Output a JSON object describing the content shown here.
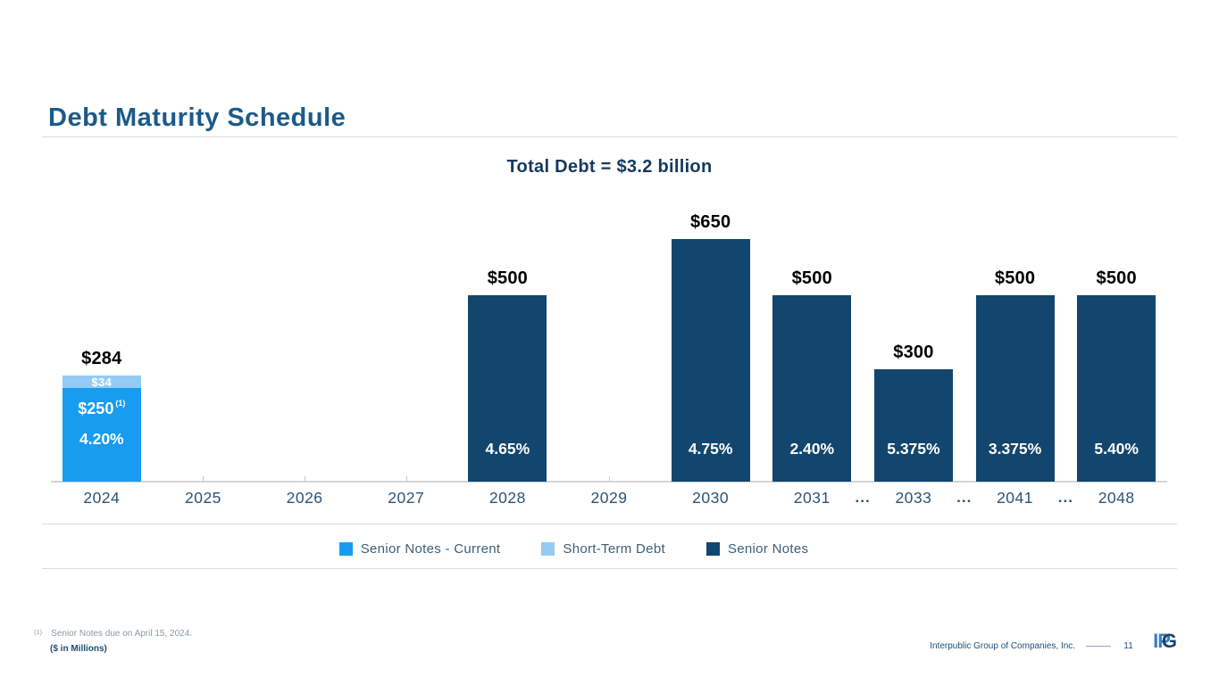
{
  "slide": {
    "title": "Debt Maturity Schedule",
    "footnote_marker": "(1)",
    "footnote_text": "Senior Notes due on April 15, 2024.",
    "footnote_unit": "($ in Millions)",
    "footer_company": "Interpublic Group of Companies, Inc.",
    "footer_page": "11",
    "logo_text_ip": "IP",
    "logo_text_g": "G"
  },
  "legend": [
    {
      "label": "Senior Notes - Current",
      "color": "#189cf0"
    },
    {
      "label": "Short-Term Debt",
      "color": "#94cbf4"
    },
    {
      "label": "Senior Notes",
      "color": "#12466e"
    }
  ],
  "chart_data": {
    "type": "bar",
    "stacked": true,
    "title": "Total Debt = $3.2 billion",
    "unit": "USD millions",
    "ylim": [
      0,
      700
    ],
    "grid": false,
    "legend_position": "bottom",
    "x_categories": [
      "2024",
      "2025",
      "2026",
      "2027",
      "2028",
      "2029",
      "2030",
      "2031",
      "2033",
      "2041",
      "2048"
    ],
    "gap_markers_after": [
      "2031",
      "2033",
      "2041"
    ],
    "ellipsis_symbol": "...",
    "series": [
      {
        "name": "Senior Notes - Current",
        "color": "#189cf0"
      },
      {
        "name": "Short-Term Debt",
        "color": "#94cbf4"
      },
      {
        "name": "Senior Notes",
        "color": "#12466e"
      }
    ],
    "bars": [
      {
        "category": "2024",
        "total": 284,
        "total_label": "$284",
        "segments": [
          {
            "series": "Short-Term Debt",
            "value": 34,
            "label": "$34"
          },
          {
            "series": "Senior Notes - Current",
            "value": 250,
            "label": "$250",
            "footnote": "(1)",
            "rate": "4.20%"
          }
        ]
      },
      {
        "category": "2028",
        "total": 500,
        "total_label": "$500",
        "segments": [
          {
            "series": "Senior Notes",
            "value": 500,
            "rate": "4.65%"
          }
        ]
      },
      {
        "category": "2030",
        "total": 650,
        "total_label": "$650",
        "segments": [
          {
            "series": "Senior Notes",
            "value": 650,
            "rate": "4.75%"
          }
        ]
      },
      {
        "category": "2031",
        "total": 500,
        "total_label": "$500",
        "segments": [
          {
            "series": "Senior Notes",
            "value": 500,
            "rate": "2.40%"
          }
        ]
      },
      {
        "category": "2033",
        "total": 300,
        "total_label": "$300",
        "segments": [
          {
            "series": "Senior Notes",
            "value": 300,
            "rate": "5.375%"
          }
        ]
      },
      {
        "category": "2041",
        "total": 500,
        "total_label": "$500",
        "segments": [
          {
            "series": "Senior Notes",
            "value": 500,
            "rate": "3.375%"
          }
        ]
      },
      {
        "category": "2048",
        "total": 500,
        "total_label": "$500",
        "segments": [
          {
            "series": "Senior Notes",
            "value": 500,
            "rate": "5.40%"
          }
        ]
      }
    ]
  }
}
